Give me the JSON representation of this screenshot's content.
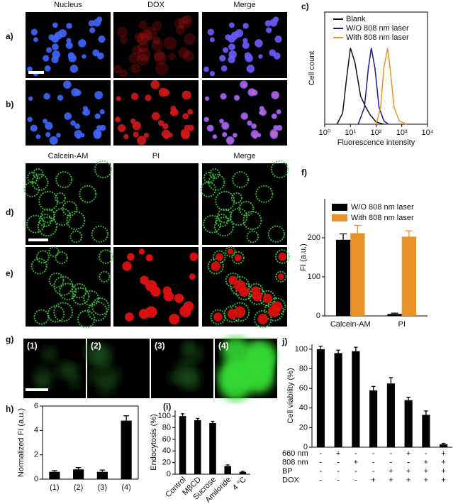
{
  "images": {
    "headers_top": [
      "Nucleus",
      "DOX",
      "Merge"
    ],
    "headers_mid": [
      "Calcein-AM",
      "PI",
      "Merge"
    ],
    "rows": [
      "a)",
      "b)",
      "d)",
      "e)"
    ],
    "g_label": "g)",
    "g_panels": [
      "(1)",
      "(2)",
      "(3)",
      "(4)"
    ]
  },
  "chart_data": [
    {
      "type": "line",
      "label": "c)",
      "xlabel": "Fluorescence intensity",
      "ylabel": "Cell count",
      "xscale": "log",
      "xlim": [
        1,
        10000
      ],
      "ylim": [
        0,
        100
      ],
      "xticks": [
        {
          "value": 1,
          "label": "10⁰"
        },
        {
          "value": 10,
          "label": "10¹"
        },
        {
          "value": 100,
          "label": "10²"
        },
        {
          "value": 1000,
          "label": "10³"
        },
        {
          "value": 10000,
          "label": "10⁴"
        }
      ],
      "legend": "upper right",
      "series": [
        {
          "name": "Blank",
          "color": "#111111",
          "x": [
            3,
            5,
            7,
            10,
            15,
            25,
            40,
            60,
            100,
            200
          ],
          "values": [
            0,
            10,
            40,
            68,
            55,
            25,
            15,
            8,
            2,
            0
          ]
        },
        {
          "name": "W/O 808 nm laser",
          "color": "#1a1a8c",
          "x": [
            20,
            35,
            50,
            65,
            90,
            130,
            200,
            300
          ],
          "values": [
            0,
            15,
            50,
            68,
            50,
            15,
            3,
            0
          ]
        },
        {
          "name": "With 808 nm laser",
          "color": "#e8932a",
          "x": [
            100,
            150,
            200,
            280,
            350,
            500,
            800,
            1500
          ],
          "values": [
            0,
            15,
            50,
            68,
            50,
            15,
            3,
            0
          ]
        }
      ]
    },
    {
      "type": "bar",
      "label": "f)",
      "ylabel": "FI (a.u.)",
      "ylim": [
        0,
        300
      ],
      "yticks": [
        0,
        100,
        200
      ],
      "categories": [
        "Calcein-AM",
        "PI"
      ],
      "legend": "upper left",
      "series": [
        {
          "name": "W/O 808 nm laser",
          "color": "#000000",
          "values": [
            195,
            5
          ],
          "errors": [
            15,
            2
          ]
        },
        {
          "name": "With 808 nm laser",
          "color": "#e8932a",
          "values": [
            212,
            203
          ],
          "errors": [
            20,
            15
          ]
        }
      ]
    },
    {
      "type": "bar",
      "label": "h)",
      "ylabel": "Normalized FI (a.u.)",
      "ylim": [
        0,
        6
      ],
      "yticks": [
        0,
        2,
        4,
        6
      ],
      "categories": [
        "(1)",
        "(2)",
        "(3)",
        "(4)"
      ],
      "color": "#000000",
      "values": [
        0.6,
        0.8,
        0.6,
        4.8
      ],
      "errors": [
        0.1,
        0.15,
        0.15,
        0.4
      ]
    },
    {
      "type": "bar",
      "label": "(i)",
      "ylabel": "Endocytosis (%)",
      "ylim": [
        0,
        110
      ],
      "yticks": [
        0,
        20,
        40,
        60,
        80,
        100
      ],
      "categories": [
        "Control",
        "MβCD",
        "Sucrose",
        "Amiloride",
        "4 °C"
      ],
      "color": "#000000",
      "values": [
        100,
        93,
        88,
        14,
        4
      ],
      "errors": [
        4,
        3,
        3,
        2,
        1
      ]
    },
    {
      "type": "bar",
      "label": "j)",
      "ylabel": "Cell viability (%)",
      "ylim": [
        0,
        105
      ],
      "yticks": [
        0,
        20,
        40,
        60,
        80,
        100
      ],
      "color": "#000000",
      "values": [
        100,
        96,
        98,
        58,
        65,
        48,
        33,
        3
      ],
      "errors": [
        3,
        3,
        4,
        4,
        6,
        3,
        4,
        1
      ],
      "conditions": [
        {
          "name": "660 nm",
          "marks": [
            "-",
            "+",
            "-",
            "-",
            "-",
            "+",
            "-",
            "+"
          ]
        },
        {
          "name": "808 nm",
          "marks": [
            "-",
            "-",
            "+",
            "-",
            "-",
            "-",
            "+",
            "+"
          ]
        },
        {
          "name": "BP",
          "marks": [
            "-",
            "-",
            "-",
            "-",
            "+",
            "+",
            "+",
            "+"
          ]
        },
        {
          "name": "DOX",
          "marks": [
            "-",
            "-",
            "-",
            "+",
            "+",
            "+",
            "+",
            "+"
          ]
        }
      ]
    }
  ]
}
